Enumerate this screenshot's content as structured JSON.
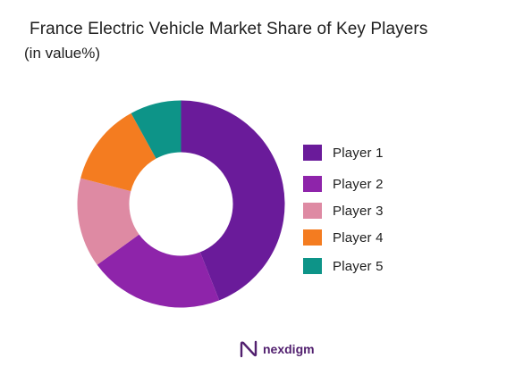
{
  "chart_data": {
    "type": "pie",
    "title": "France Electric Vehicle Market Share of Key Players",
    "subtitle": "(in value%)",
    "donut": true,
    "legend_position": "right",
    "series": [
      {
        "name": "Player 1",
        "value": 44,
        "color": "#6a1b9a"
      },
      {
        "name": "Player 2",
        "value": 21,
        "color": "#8e24aa"
      },
      {
        "name": "Player 3",
        "value": 14,
        "color": "#de8aa3"
      },
      {
        "name": "Player 4",
        "value": 13,
        "color": "#f47c20"
      },
      {
        "name": "Player 5",
        "value": 8,
        "color": "#0d9488"
      }
    ]
  },
  "brand": {
    "name": "nexdigm",
    "logo_icon": "nexdigm-logo-icon",
    "color": "#52206f"
  }
}
